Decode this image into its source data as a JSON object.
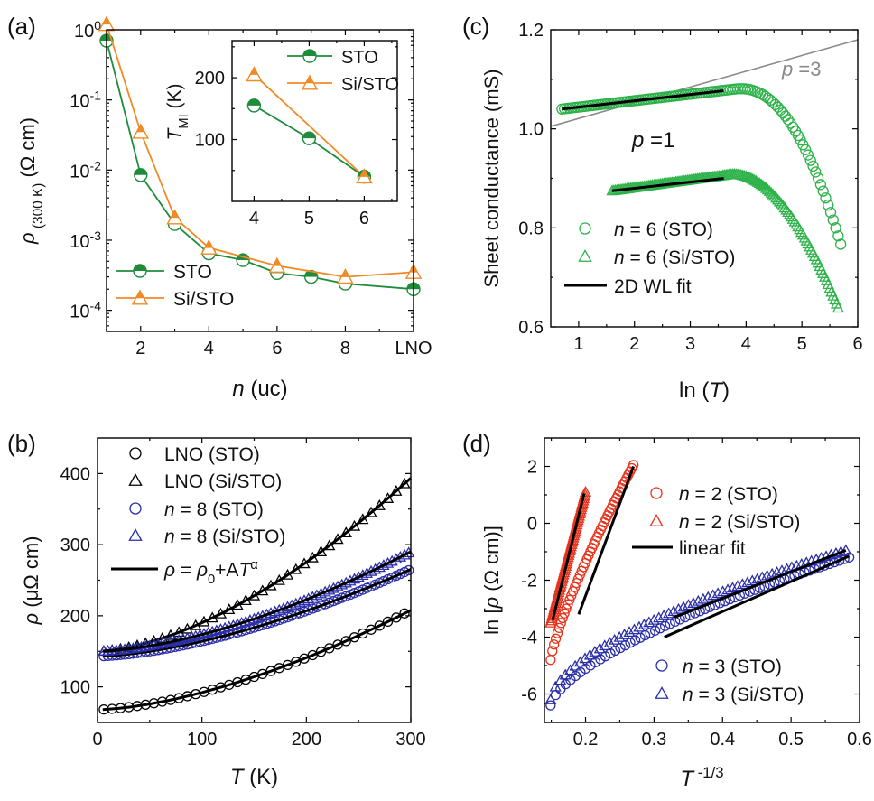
{
  "colors": {
    "sto_green": "#1e8c3a",
    "sio_orange": "#f08a24",
    "red": "#e8331c",
    "blue": "#2a2ea8",
    "light_green": "#2eb34a",
    "gray": "#8a8a8a",
    "black": "#000000"
  },
  "chart_data": [
    {
      "panel_label": "(a)",
      "type": "line",
      "xlabel": "n (uc)",
      "ylabel": "ρ (300 K) (Ω cm)",
      "yscale": "log",
      "xlim": [
        1,
        10
      ],
      "ylim": [
        5e-05,
        1
      ],
      "x_tick_labels": [
        "2",
        "4",
        "6",
        "8",
        "LNO"
      ],
      "y_tick_labels": [
        "10⁻⁴",
        "10⁻³",
        "10⁻²",
        "10⁻¹",
        "10⁰"
      ],
      "legend": "bottom-left",
      "series": [
        {
          "name": "STO",
          "marker": "half-filled circle",
          "x": [
            1,
            2,
            3,
            4,
            5,
            6,
            7,
            8,
            10
          ],
          "values": [
            0.7,
            0.0085,
            0.0017,
            0.00065,
            0.00052,
            0.00034,
            0.0003,
            0.00024,
            0.0002
          ]
        },
        {
          "name": "Si/STO",
          "marker": "half-filled triangle",
          "x": [
            1,
            2,
            3,
            4,
            6,
            8,
            10
          ],
          "values": [
            1.2,
            0.035,
            0.0021,
            0.00078,
            0.00043,
            0.0003,
            0.00035
          ]
        }
      ],
      "inset": {
        "type": "line",
        "ylabel": "T_MI (K)",
        "xlim": [
          3.6,
          6.6
        ],
        "ylim": [
          0,
          260
        ],
        "x_tick_labels": [
          "4",
          "5",
          "6"
        ],
        "y_tick_labels": [
          "100",
          "200"
        ],
        "series": [
          {
            "name": "STO",
            "x": [
              4,
              5,
              6
            ],
            "values": [
              155,
              102,
              40
            ]
          },
          {
            "name": "Si/STO",
            "x": [
              4,
              5,
              6
            ],
            "values": [
              205,
              0,
              40
            ],
            "x_real": [
              4,
              6
            ]
          }
        ]
      }
    },
    {
      "panel_label": "(b)",
      "type": "line",
      "xlabel": "T (K)",
      "ylabel": "ρ (μΩ cm)",
      "xlim": [
        0,
        300
      ],
      "ylim": [
        50,
        450
      ],
      "x_tick_labels": [
        "0",
        "100",
        "200",
        "300"
      ],
      "y_tick_labels": [
        "100",
        "200",
        "300",
        "400"
      ],
      "legend": "top-left",
      "legend_entries": [
        "LNO (STO)",
        "LNO (Si/STO)",
        "n = 8 (STO)",
        "n = 8 (Si/STO)",
        "ρ = ρ0+AT^α"
      ],
      "series": [
        {
          "name": "LNO (STO)",
          "rho0": 68,
          "A": 0.0152,
          "alpha": 1.6
        },
        {
          "name": "LNO (Si/STO)",
          "rho0": 150,
          "A": 0.0211,
          "alpha": 1.64
        },
        {
          "name": "n = 8 (STO)",
          "rho0": 143,
          "A": 0.0133,
          "alpha": 1.6
        },
        {
          "name": "n = 8 (Si/STO)",
          "rho0": 150,
          "A": 0.0136,
          "alpha": 1.62
        }
      ]
    },
    {
      "panel_label": "(c)",
      "type": "scatter",
      "xlabel": "ln (T)",
      "ylabel": "Sheet conductance (mS)",
      "xlim": [
        0.5,
        6
      ],
      "ylim": [
        0.6,
        1.2
      ],
      "x_tick_labels": [
        "1",
        "2",
        "3",
        "4",
        "5",
        "6"
      ],
      "y_tick_labels": [
        "0.6",
        "0.8",
        "1.0",
        "1.2"
      ],
      "annotations": [
        "p =3",
        "p =1"
      ],
      "legend": "bottom-left",
      "legend_entries": [
        "n = 6 (STO)",
        "n = 6 (Si/STO)",
        "2D WL fit"
      ],
      "series": [
        {
          "name": "n = 6 (STO)",
          "x_range": [
            0.7,
            5.7
          ],
          "plateau": 1.04,
          "slope": 0.013,
          "peak_x": 3.8
        },
        {
          "name": "n = 6 (Si/STO)",
          "x_range": [
            1.6,
            5.65
          ],
          "plateau": 0.875,
          "slope": 0.013,
          "peak_x": 3.7
        }
      ],
      "reference_line": {
        "x": [
          0.5,
          6
        ],
        "values": [
          1.005,
          1.18
        ]
      }
    },
    {
      "panel_label": "(d)",
      "type": "scatter",
      "xlabel": "T^-1/3",
      "ylabel": "ln [ρ (Ω cm)]",
      "xlim": [
        0.14,
        0.6
      ],
      "ylim": [
        -7,
        3
      ],
      "x_tick_labels": [
        "0.2",
        "0.3",
        "0.4",
        "0.5",
        "0.6"
      ],
      "y_tick_labels": [
        "-6",
        "-4",
        "-2",
        "0",
        "2"
      ],
      "legend_entries": [
        "n = 2 (STO)",
        "n = 2 (Si/STO)",
        "linear fit",
        "n = 3 (STO)",
        "n = 3 (Si/STO)"
      ],
      "series": [
        {
          "name": "n = 2 (STO)",
          "x_range": [
            0.149,
            0.27
          ],
          "y_range": [
            -4.8,
            2.05
          ]
        },
        {
          "name": "n = 2 (Si/STO)",
          "x_range": [
            0.149,
            0.2
          ],
          "y_range": [
            -3.5,
            1.1
          ]
        },
        {
          "name": "n = 3 (STO)",
          "x_range": [
            0.149,
            0.585
          ],
          "y_range": [
            -6.4,
            -1.2
          ]
        },
        {
          "name": "n = 3 (Si/STO)",
          "x_range": [
            0.149,
            0.58
          ],
          "y_range": [
            -6.2,
            -0.95
          ]
        }
      ]
    }
  ]
}
